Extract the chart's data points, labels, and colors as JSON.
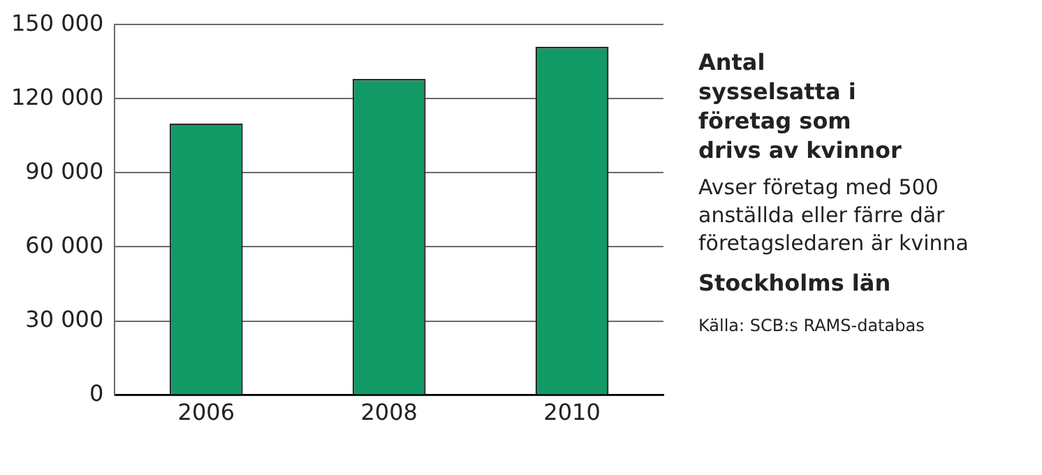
{
  "chart_data": {
    "type": "bar",
    "title": "Antal sysselsatta i företag som drivs av kvinnor",
    "subtitle": "Avser företag med 500 anställda eller färre där företagsledaren är kvinna",
    "annotations": [
      "Stockholms län",
      "Källa: SCB:s RAMS-databas"
    ],
    "categories": [
      "2006",
      "2008",
      "2010"
    ],
    "values": [
      110000,
      128000,
      141000
    ],
    "color": "#119966",
    "ylim": [
      0,
      150000
    ],
    "yticks": [
      {
        "value": 0,
        "label": "0"
      },
      {
        "value": 30000,
        "label": "30 000"
      },
      {
        "value": 60000,
        "label": "60 000"
      },
      {
        "value": 90000,
        "label": "90 000"
      },
      {
        "value": 120000,
        "label": "120 000"
      },
      {
        "value": 150000,
        "label": "150 000"
      }
    ],
    "grid": "y",
    "legend": false
  }
}
